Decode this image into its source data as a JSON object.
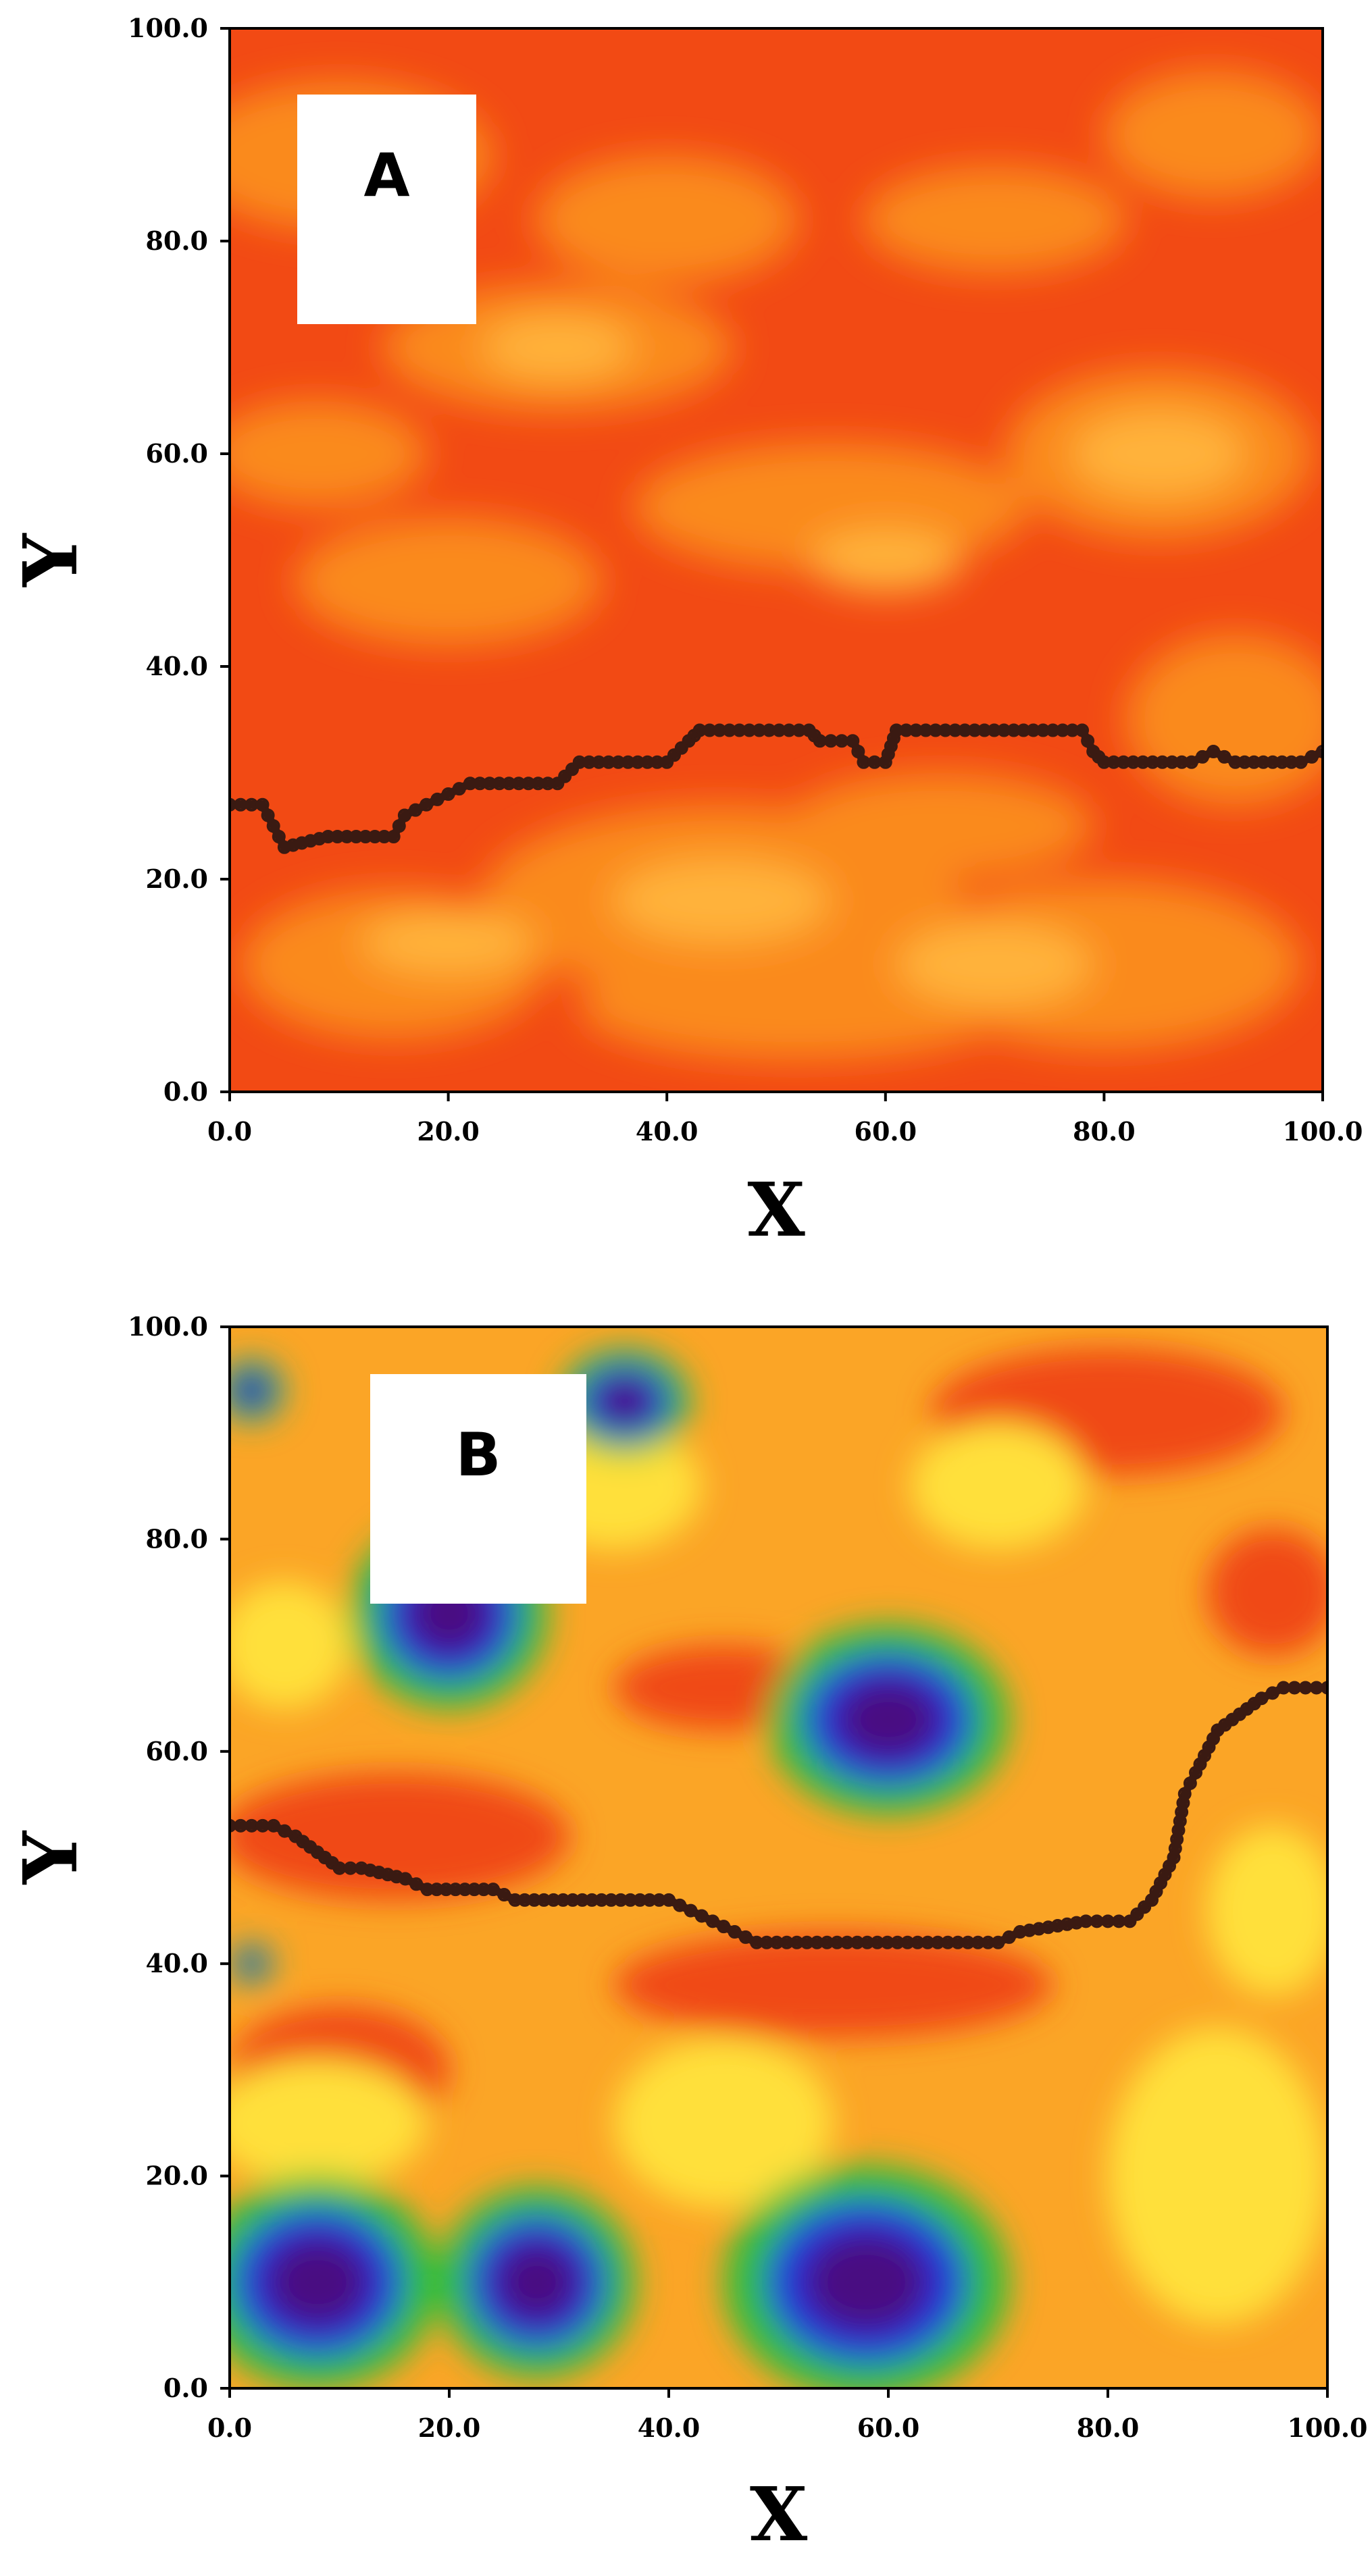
{
  "chart_data": [
    {
      "type": "heatmap",
      "panel_label": "A",
      "xlabel": "X",
      "ylabel": "Y",
      "xlim": [
        0,
        100
      ],
      "ylim": [
        0,
        100
      ],
      "xticks": [
        "0.0",
        "20.0",
        "40.0",
        "60.0",
        "80.0",
        "100.0"
      ],
      "yticks": [
        "0.0",
        "20.0",
        "40.0",
        "60.0",
        "80.0",
        "100.0"
      ],
      "grid": false,
      "colors": {
        "primary": "#f24a14",
        "secondary": "#fa8a1e",
        "highlight": "#ffb23a",
        "path": "#3a1a12"
      },
      "field_range": "mostly orange-red with yellow-orange patches",
      "path": {
        "x": [
          0,
          3,
          4,
          5,
          9,
          15,
          16,
          18,
          20,
          22,
          30,
          32,
          40,
          42,
          43,
          53,
          54,
          57,
          58,
          60,
          61,
          78,
          79,
          80,
          88,
          90,
          92,
          98,
          100
        ],
        "y": [
          27,
          27,
          25,
          23,
          24,
          24,
          26,
          27,
          28,
          29,
          29,
          31,
          31,
          33,
          34,
          34,
          33,
          33,
          31,
          31,
          34,
          34,
          32,
          31,
          31,
          32,
          31,
          31,
          32
        ]
      }
    },
    {
      "type": "heatmap",
      "panel_label": "B",
      "xlabel": "X",
      "ylabel": "Y",
      "xlim": [
        0,
        100
      ],
      "ylim": [
        0,
        100
      ],
      "xticks": [
        "0.0",
        "20.0",
        "40.0",
        "60.0",
        "80.0",
        "100.0"
      ],
      "yticks": [
        "0.0",
        "20.0",
        "40.0",
        "60.0",
        "80.0",
        "100.0"
      ],
      "grid": false,
      "colors": {
        "high": "#f04a14",
        "mid": "#fba526",
        "low_mid": "#ffe03a",
        "low": "#2fbe3a",
        "lower": "#1f34e0",
        "lowest": "#4a0f82",
        "path": "#3a1a12"
      },
      "field_range": "orange/yellow background with green-blue-purple depressions",
      "path": {
        "x": [
          0,
          4,
          6,
          10,
          12,
          16,
          18,
          24,
          26,
          40,
          42,
          44,
          46,
          48,
          70,
          72,
          78,
          82,
          84,
          86,
          87,
          88,
          90,
          94,
          96,
          100
        ],
        "y": [
          53,
          53,
          52,
          49,
          49,
          48,
          47,
          47,
          46,
          46,
          45,
          44,
          43,
          42,
          42,
          43,
          44,
          44,
          46,
          50,
          56,
          58,
          62,
          65,
          66,
          66
        ]
      }
    }
  ]
}
